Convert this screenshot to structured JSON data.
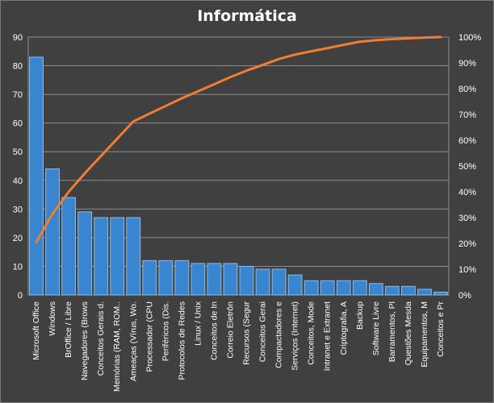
{
  "chart_data": {
    "type": "bar",
    "title": "Informática",
    "categories": [
      "Microsoft Office",
      "Windows",
      "BrOffice / Libre",
      "Navegadores (Brows",
      "Conceitos Gerais d.",
      "Memórias (RAM, ROM..",
      "Ameaças (Vírus, Wo.",
      "Processador (CPU",
      "Periféricos (Dis.",
      "Protocolos de Redes",
      "Linux / Unix",
      "Conceitos de In",
      "Correio Eletrôn",
      "Recursos (Segur",
      "Conceitos Gerai",
      "Compactadores e",
      "Serviços (Internet)",
      "Conceitos, Mode",
      "Intranet e Extranet",
      "Criptografia, A",
      "Backup",
      "Software Livre",
      "Barramentos, Pl",
      "Questões Mesda",
      "Equipamentos, M",
      "Conceitos e Pr"
    ],
    "series": [
      {
        "type": "bar",
        "axis": "left",
        "color": "#3a85d0",
        "values": [
          83,
          44,
          34,
          29,
          27,
          27,
          27,
          12,
          12,
          12,
          11,
          11,
          11,
          10,
          9,
          9,
          7,
          5,
          5,
          5,
          5,
          4,
          3,
          3,
          2,
          1
        ]
      },
      {
        "type": "line",
        "axis": "right",
        "color": "#f07d32",
        "values": [
          20.5,
          31.5,
          40.0,
          47.2,
          53.9,
          60.6,
          67.3,
          70.3,
          73.3,
          76.3,
          79.0,
          81.7,
          84.5,
          87.0,
          89.2,
          91.5,
          93.2,
          94.5,
          95.7,
          97.0,
          98.2,
          98.8,
          99.2,
          99.5,
          99.8,
          100.0
        ]
      }
    ],
    "y_left": {
      "min": 0,
      "max": 90,
      "step": 10,
      "ticks": [
        "0",
        "10",
        "20",
        "30",
        "40",
        "50",
        "60",
        "70",
        "80",
        "90"
      ]
    },
    "y_right": {
      "min": 0,
      "max": 100,
      "step": 10,
      "ticks": [
        "0%",
        "10%",
        "20%",
        "30%",
        "40%",
        "50%",
        "60%",
        "70%",
        "80%",
        "90%",
        "100%"
      ]
    },
    "grid": true,
    "legend": "none",
    "colors": {
      "background": "#404040",
      "plot_background": "#404040",
      "gridline": "#8c8c8c",
      "text": "#ffffff",
      "bar": "#3a85d0",
      "bar_edge": "#8dbbe8",
      "line": "#f07d32"
    }
  }
}
